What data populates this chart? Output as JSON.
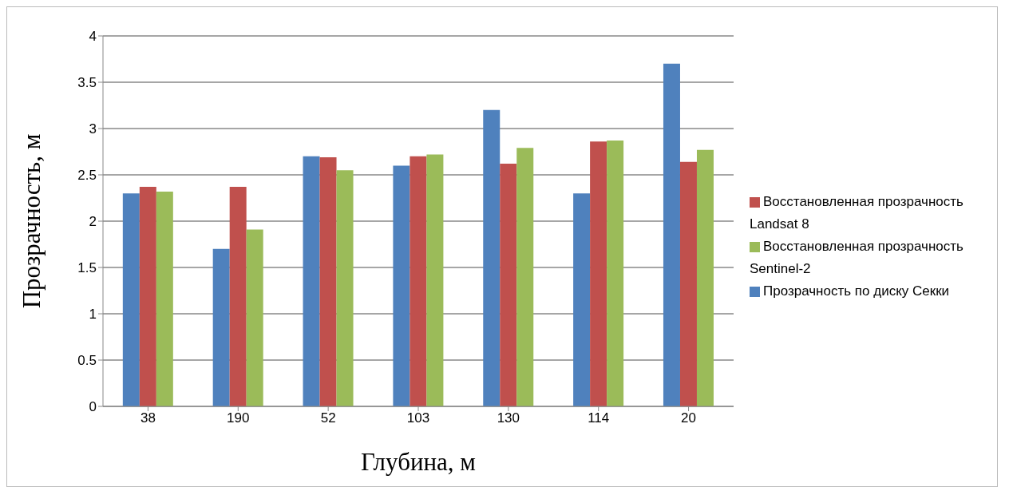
{
  "chart_data": {
    "type": "bar",
    "xlabel": "Глубина, м",
    "ylabel": "Прозрачность, м",
    "categories": [
      "38",
      "190",
      "52",
      "103",
      "130",
      "114",
      "20"
    ],
    "series": [
      {
        "name": "Прозрачность по диску Секки",
        "color": "#4f81bd",
        "values": [
          2.3,
          1.7,
          2.7,
          2.6,
          3.2,
          2.3,
          3.7
        ]
      },
      {
        "name": "Восстановленная прозрачность Landsat 8",
        "color": "#c0504d",
        "values": [
          2.37,
          2.37,
          2.69,
          2.7,
          2.62,
          2.86,
          2.64
        ]
      },
      {
        "name": "Восстановленная прозрачность Sentinel-2",
        "color": "#9bbb59",
        "values": [
          2.32,
          1.91,
          2.55,
          2.72,
          2.79,
          2.87,
          2.77
        ]
      }
    ],
    "ylim": [
      0,
      4
    ],
    "yticks": [
      0,
      0.5,
      1,
      1.5,
      2,
      2.5,
      3,
      3.5,
      4
    ],
    "grid": "y",
    "legend": "right"
  }
}
